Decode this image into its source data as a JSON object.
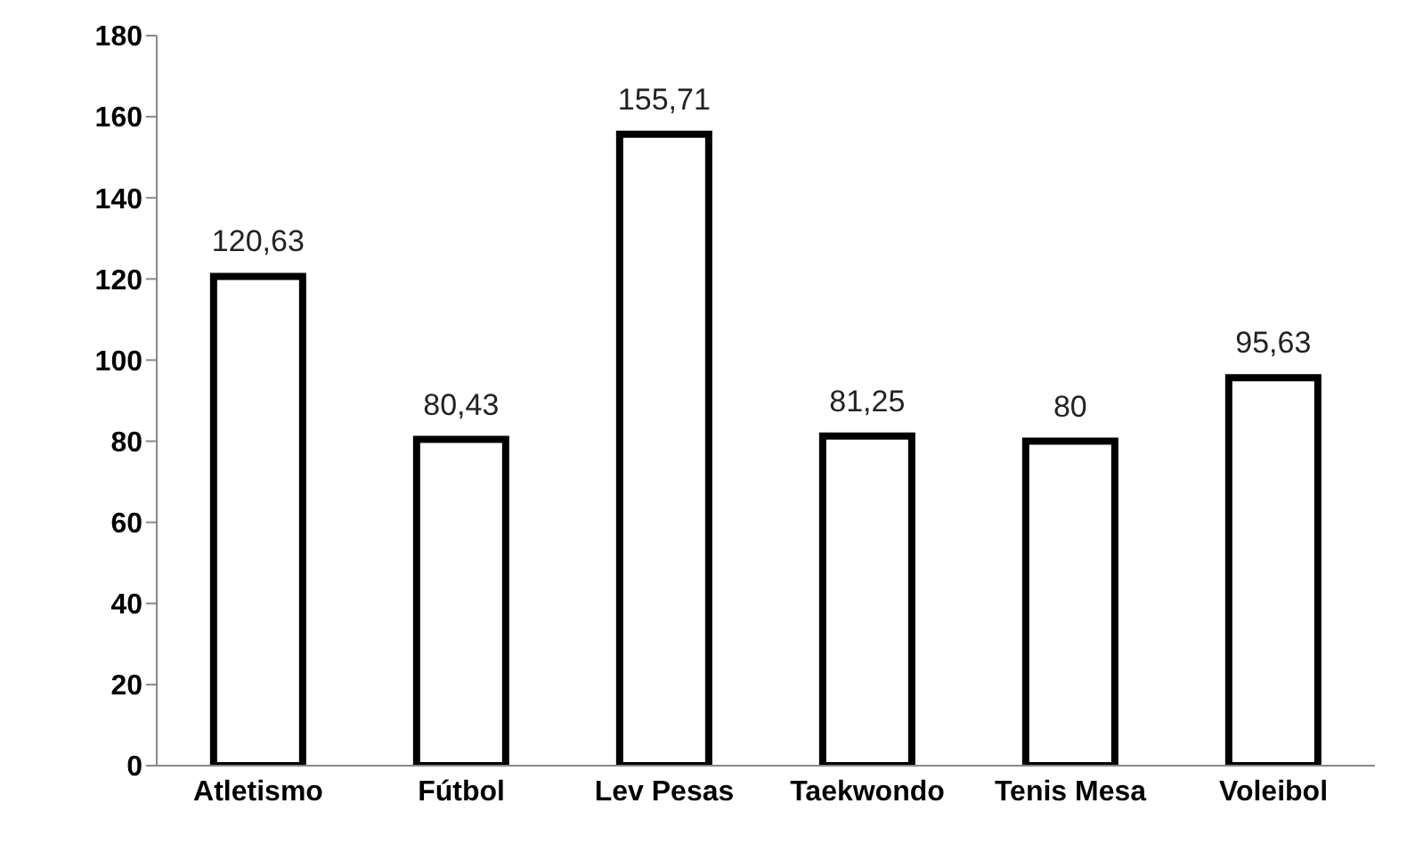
{
  "chart_data": {
    "type": "bar",
    "categories": [
      "Atletismo",
      "Fútbol",
      "Lev Pesas",
      "Taekwondo",
      "Tenis Mesa",
      "Voleibol"
    ],
    "values": [
      120.63,
      80.43,
      155.71,
      81.25,
      80,
      95.63
    ],
    "value_labels": [
      "120,63",
      "80,43",
      "155,71",
      "81,25",
      "80",
      "95,63"
    ],
    "color": "#ffffff",
    "ylim": [
      0,
      180
    ],
    "yticks": [
      0,
      20,
      40,
      60,
      80,
      100,
      120,
      140,
      160,
      180
    ],
    "grid": false,
    "legend": false
  }
}
